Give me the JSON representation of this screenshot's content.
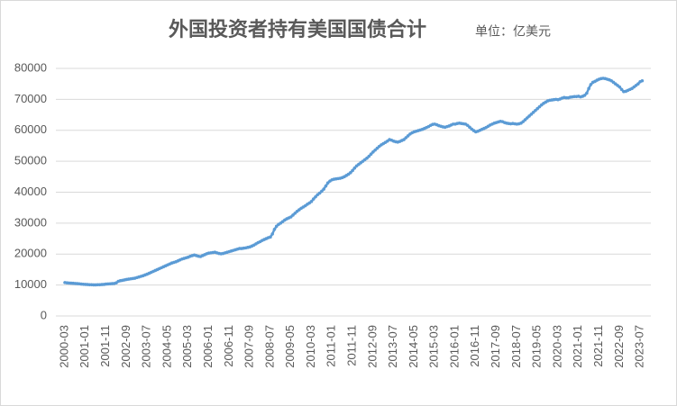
{
  "chart_data": {
    "type": "line",
    "title": "外国投资者持有美国国债合计",
    "subtitle": "单位：亿美元",
    "color": "#5b9bd5",
    "grid": true,
    "ylim": [
      0,
      80000
    ],
    "yticks": [
      0,
      10000,
      20000,
      30000,
      40000,
      50000,
      60000,
      70000,
      80000
    ],
    "categories": [
      "2000-03",
      null,
      null,
      null,
      null,
      null,
      null,
      null,
      null,
      null,
      "2001-01",
      null,
      null,
      null,
      null,
      null,
      null,
      null,
      null,
      null,
      "2001-11",
      null,
      null,
      null,
      null,
      null,
      null,
      null,
      null,
      null,
      "2002-09",
      null,
      null,
      null,
      null,
      null,
      null,
      null,
      null,
      null,
      "2003-07",
      null,
      null,
      null,
      null,
      null,
      null,
      null,
      null,
      null,
      "2004-05",
      null,
      null,
      null,
      null,
      null,
      null,
      null,
      null,
      null,
      "2005-03",
      null,
      null,
      null,
      null,
      null,
      null,
      null,
      null,
      null,
      "2006-01",
      null,
      null,
      null,
      null,
      null,
      null,
      null,
      null,
      null,
      "2006-11",
      null,
      null,
      null,
      null,
      null,
      null,
      null,
      null,
      null,
      "2007-09",
      null,
      null,
      null,
      null,
      null,
      null,
      null,
      null,
      null,
      "2008-07",
      null,
      null,
      null,
      null,
      null,
      null,
      null,
      null,
      null,
      "2009-05",
      null,
      null,
      null,
      null,
      null,
      null,
      null,
      null,
      null,
      "2010-03",
      null,
      null,
      null,
      null,
      null,
      null,
      null,
      null,
      null,
      "2011-01",
      null,
      null,
      null,
      null,
      null,
      null,
      null,
      null,
      null,
      "2011-11",
      null,
      null,
      null,
      null,
      null,
      null,
      null,
      null,
      null,
      "2012-09",
      null,
      null,
      null,
      null,
      null,
      null,
      null,
      null,
      null,
      "2013-07",
      null,
      null,
      null,
      null,
      null,
      null,
      null,
      null,
      null,
      "2014-05",
      null,
      null,
      null,
      null,
      null,
      null,
      null,
      null,
      null,
      "2015-03",
      null,
      null,
      null,
      null,
      null,
      null,
      null,
      null,
      null,
      "2016-01",
      null,
      null,
      null,
      null,
      null,
      null,
      null,
      null,
      null,
      "2016-11",
      null,
      null,
      null,
      null,
      null,
      null,
      null,
      null,
      null,
      "2017-09",
      null,
      null,
      null,
      null,
      null,
      null,
      null,
      null,
      null,
      "2018-07",
      null,
      null,
      null,
      null,
      null,
      null,
      null,
      null,
      null,
      "2019-05",
      null,
      null,
      null,
      null,
      null,
      null,
      null,
      null,
      null,
      "2020-03",
      null,
      null,
      null,
      null,
      null,
      null,
      null,
      null,
      null,
      "2021-01",
      null,
      null,
      null,
      null,
      null,
      null,
      null,
      null,
      null,
      "2021-11",
      null,
      null,
      null,
      null,
      null,
      null,
      null,
      null,
      null,
      "2022-09",
      null,
      null,
      null,
      null,
      null,
      null,
      null,
      null,
      null,
      "2023-07",
      null
    ],
    "values": [
      10800,
      10700,
      10650,
      10600,
      10550,
      10500,
      10450,
      10400,
      10300,
      10250,
      10200,
      10150,
      10100,
      10100,
      10050,
      10050,
      10100,
      10100,
      10150,
      10200,
      10300,
      10350,
      10400,
      10450,
      10500,
      10700,
      11200,
      11400,
      11500,
      11650,
      11800,
      11900,
      12000,
      12100,
      12200,
      12400,
      12600,
      12800,
      13000,
      13250,
      13500,
      13800,
      14100,
      14400,
      14700,
      15000,
      15300,
      15600,
      15900,
      16200,
      16500,
      16800,
      17100,
      17300,
      17500,
      17800,
      18100,
      18400,
      18600,
      18800,
      19000,
      19300,
      19500,
      19700,
      19500,
      19300,
      19200,
      19500,
      19800,
      20100,
      20300,
      20400,
      20500,
      20600,
      20400,
      20200,
      20100,
      20200,
      20400,
      20600,
      20800,
      21000,
      21200,
      21400,
      21600,
      21800,
      21800,
      21900,
      22000,
      22150,
      22300,
      22600,
      22900,
      23300,
      23700,
      24000,
      24400,
      24700,
      25000,
      25300,
      25500,
      26500,
      28000,
      29000,
      29600,
      30000,
      30500,
      31000,
      31400,
      31700,
      32000,
      32600,
      33200,
      33800,
      34300,
      34800,
      35200,
      35600,
      36100,
      36500,
      37000,
      37800,
      38500,
      39200,
      39700,
      40300,
      41000,
      42000,
      43000,
      43600,
      44000,
      44200,
      44300,
      44400,
      44500,
      44700,
      45000,
      45400,
      45800,
      46300,
      47000,
      47800,
      48500,
      49000,
      49500,
      50000,
      50500,
      51000,
      51600,
      52300,
      53000,
      53600,
      54200,
      54800,
      55300,
      55700,
      56100,
      56500,
      57000,
      56800,
      56500,
      56300,
      56200,
      56400,
      56700,
      57000,
      57600,
      58200,
      58800,
      59200,
      59500,
      59700,
      59900,
      60100,
      60300,
      60600,
      60900,
      61200,
      61600,
      61900,
      62000,
      61800,
      61500,
      61300,
      61100,
      61000,
      61200,
      61400,
      61700,
      62000,
      62000,
      62200,
      62300,
      62200,
      62100,
      62000,
      61600,
      61000,
      60400,
      59900,
      59500,
      59700,
      60000,
      60300,
      60600,
      60900,
      61300,
      61700,
      62000,
      62300,
      62500,
      62700,
      62900,
      62800,
      62500,
      62300,
      62200,
      62100,
      62200,
      62100,
      62000,
      62100,
      62300,
      62800,
      63400,
      64000,
      64600,
      65200,
      65800,
      66400,
      67000,
      67600,
      68200,
      68700,
      69100,
      69500,
      69700,
      69800,
      69900,
      70000,
      69900,
      70100,
      70400,
      70600,
      70500,
      70500,
      70700,
      70800,
      70900,
      70900,
      71000,
      70800,
      71000,
      71300,
      72000,
      73500,
      74800,
      75500,
      75800,
      76200,
      76500,
      76700,
      76800,
      76700,
      76500,
      76300,
      76000,
      75500,
      75000,
      74500,
      74000,
      73200,
      72500,
      72600,
      72900,
      73200,
      73500,
      74000,
      74500,
      75000,
      75700,
      76000
    ]
  }
}
